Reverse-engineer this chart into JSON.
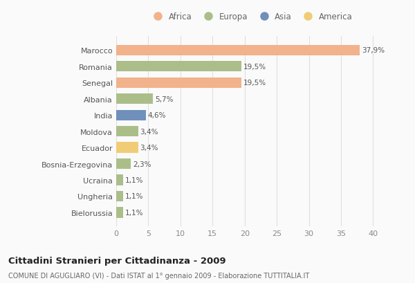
{
  "countries": [
    "Marocco",
    "Romania",
    "Senegal",
    "Albania",
    "India",
    "Moldova",
    "Ecuador",
    "Bosnia-Erzegovina",
    "Ucraina",
    "Ungheria",
    "Bielorussia"
  ],
  "values": [
    37.9,
    19.5,
    19.5,
    5.7,
    4.6,
    3.4,
    3.4,
    2.3,
    1.1,
    1.1,
    1.1
  ],
  "labels": [
    "37,9%",
    "19,5%",
    "19,5%",
    "5,7%",
    "4,6%",
    "3,4%",
    "3,4%",
    "2,3%",
    "1,1%",
    "1,1%",
    "1,1%"
  ],
  "colors": [
    "#F2B28C",
    "#ABBE8A",
    "#F2B28C",
    "#ABBE8A",
    "#7090BB",
    "#ABBE8A",
    "#F0CC77",
    "#ABBE8A",
    "#ABBE8A",
    "#ABBE8A",
    "#ABBE8A"
  ],
  "legend": [
    {
      "label": "Africa",
      "color": "#F2B28C"
    },
    {
      "label": "Europa",
      "color": "#ABBE8A"
    },
    {
      "label": "Asia",
      "color": "#7090BB"
    },
    {
      "label": "America",
      "color": "#F0CC77"
    }
  ],
  "title": "Cittadini Stranieri per Cittadinanza - 2009",
  "subtitle": "COMUNE DI AGUGLIARO (VI) - Dati ISTAT al 1° gennaio 2009 - Elaborazione TUTTITALIA.IT",
  "xlim": [
    0,
    42
  ],
  "xticks": [
    0,
    5,
    10,
    15,
    20,
    25,
    30,
    35,
    40
  ],
  "bg_color": "#FAFAFA",
  "grid_color": "#E0E0E0",
  "bar_height": 0.65
}
